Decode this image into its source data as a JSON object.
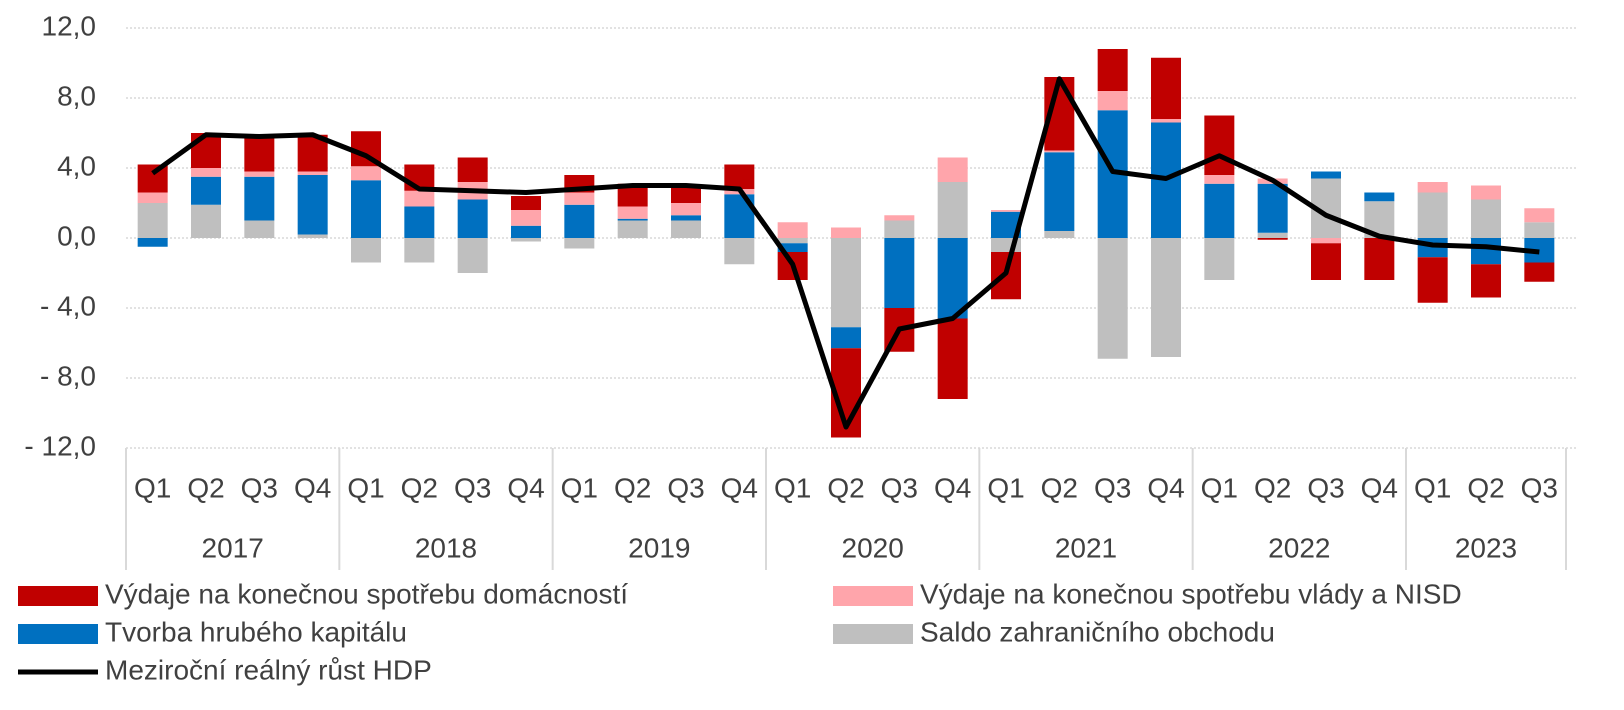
{
  "chart_data": {
    "type": "bar",
    "categories": [
      "Q1",
      "Q2",
      "Q3",
      "Q4",
      "Q1",
      "Q2",
      "Q3",
      "Q4",
      "Q1",
      "Q2",
      "Q3",
      "Q4",
      "Q1",
      "Q2",
      "Q3",
      "Q4",
      "Q1",
      "Q2",
      "Q3",
      "Q4",
      "Q1",
      "Q2",
      "Q3",
      "Q4",
      "Q1",
      "Q2",
      "Q3"
    ],
    "years": [
      "2017",
      "2018",
      "2019",
      "2020",
      "2021",
      "2022",
      "2023"
    ],
    "stacked": true,
    "series": [
      {
        "name": "Výdaje na konečnou spotřebu domácností",
        "color": "#c00000",
        "values": [
          1.6,
          2.0,
          2.0,
          2.1,
          2.0,
          1.5,
          1.4,
          0.8,
          1.0,
          1.3,
          1.0,
          1.4,
          -1.6,
          -5.1,
          -2.5,
          -4.6,
          -2.7,
          4.2,
          2.4,
          3.5,
          3.4,
          -0.1,
          -2.1,
          -2.4,
          -2.6,
          -1.9,
          -1.1
        ]
      },
      {
        "name": "Výdaje na konečnou spotřebu vlády a NISD",
        "color": "#ffa5ab",
        "values": [
          0.6,
          0.5,
          0.3,
          0.2,
          0.8,
          0.9,
          1.0,
          0.9,
          0.7,
          0.7,
          0.7,
          0.3,
          0.9,
          0.6,
          0.3,
          1.4,
          0.1,
          0.1,
          1.1,
          0.2,
          0.5,
          0.3,
          -0.3,
          0.0,
          0.6,
          0.8,
          0.8
        ]
      },
      {
        "name": "Tvorba hrubého kapitálu",
        "color": "#0070c0",
        "values": [
          -0.5,
          1.6,
          2.5,
          3.4,
          3.3,
          1.8,
          2.2,
          0.7,
          1.9,
          0.1,
          0.3,
          2.5,
          -0.5,
          -1.2,
          -4.0,
          -4.6,
          1.5,
          4.5,
          7.3,
          6.6,
          3.1,
          2.8,
          0.4,
          0.5,
          -1.1,
          -1.5,
          -1.4
        ]
      },
      {
        "name": "Saldo zahraničního obchodu",
        "color": "#bfbfbf",
        "values": [
          2.0,
          1.9,
          1.0,
          0.2,
          -1.4,
          -1.4,
          -2.0,
          -0.2,
          -0.6,
          1.0,
          1.0,
          -1.5,
          -0.3,
          -5.1,
          1.0,
          3.2,
          -0.8,
          0.4,
          -6.9,
          -6.8,
          -2.4,
          0.3,
          3.4,
          2.1,
          2.6,
          2.2,
          0.9
        ]
      },
      {
        "name": "Meziroční reálný růst HDP",
        "color": "#000000",
        "type": "line",
        "values": [
          3.7,
          5.9,
          5.8,
          5.9,
          4.7,
          2.8,
          2.7,
          2.6,
          2.8,
          3.0,
          3.0,
          2.8,
          -1.5,
          -10.8,
          -5.2,
          -4.6,
          -2.0,
          9.1,
          3.8,
          3.4,
          4.7,
          3.3,
          1.3,
          0.1,
          -0.4,
          -0.5,
          -0.8
        ]
      }
    ],
    "ylim": [
      -12,
      12
    ],
    "yticks": [
      {
        "value": 12,
        "label": "12,0"
      },
      {
        "value": 8,
        "label": "8,0"
      },
      {
        "value": 4,
        "label": "4,0"
      },
      {
        "value": 0,
        "label": "0,0"
      },
      {
        "value": -4,
        "label": "- 4,0"
      },
      {
        "value": -8,
        "label": "- 8,0"
      },
      {
        "value": -12,
        "label": "- 12,0"
      }
    ],
    "grid": true
  }
}
